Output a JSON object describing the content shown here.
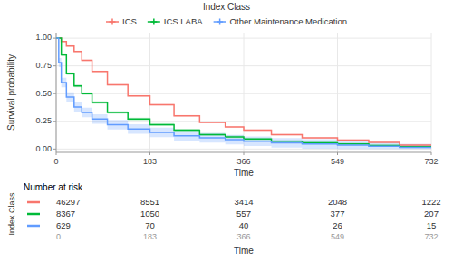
{
  "chart_data": {
    "type": "line",
    "xlabel": "Time",
    "ylabel": "Survival probability",
    "legend_title": "Index Class",
    "legend": "top",
    "grid": true,
    "xlim": [
      0,
      732
    ],
    "ylim": [
      -0.03,
      1.05
    ],
    "xticks": [
      0,
      183,
      366,
      549,
      732
    ],
    "yticks": [
      {
        "value": 0.0,
        "label": "0.00"
      },
      {
        "value": 0.25,
        "label": "0.25"
      },
      {
        "value": 0.5,
        "label": "0.50"
      },
      {
        "value": 0.75,
        "label": "0.75"
      },
      {
        "value": 1.0,
        "label": "1.00"
      }
    ],
    "risk_table": {
      "title": "Number at risk",
      "times": [
        0,
        183,
        366,
        549,
        732
      ]
    },
    "series": [
      {
        "name": "ICS",
        "color": "#f8766d",
        "x": [
          0,
          10,
          10,
          20,
          20,
          35,
          35,
          50,
          50,
          70,
          70,
          100,
          100,
          140,
          140,
          183,
          183,
          230,
          230,
          280,
          280,
          330,
          330,
          366,
          366,
          420,
          420,
          480,
          480,
          549,
          549,
          610,
          610,
          670,
          670,
          732
        ],
        "values": [
          1.0,
          1.0,
          0.97,
          0.97,
          0.93,
          0.93,
          0.88,
          0.88,
          0.8,
          0.8,
          0.7,
          0.7,
          0.58,
          0.58,
          0.48,
          0.48,
          0.4,
          0.4,
          0.3,
          0.3,
          0.24,
          0.24,
          0.2,
          0.2,
          0.17,
          0.17,
          0.13,
          0.13,
          0.1,
          0.1,
          0.08,
          0.08,
          0.06,
          0.06,
          0.035,
          0.035
        ],
        "ci_upper": [
          1.0,
          1.0,
          0.975,
          0.975,
          0.938,
          0.938,
          0.888,
          0.888,
          0.808,
          0.808,
          0.708,
          0.708,
          0.588,
          0.588,
          0.488,
          0.488,
          0.408,
          0.408,
          0.308,
          0.308,
          0.248,
          0.248,
          0.208,
          0.208,
          0.178,
          0.178,
          0.138,
          0.138,
          0.108,
          0.108,
          0.088,
          0.088,
          0.068,
          0.068,
          0.045,
          0.045
        ],
        "ci_lower": [
          1.0,
          1.0,
          0.965,
          0.965,
          0.922,
          0.922,
          0.872,
          0.872,
          0.792,
          0.792,
          0.692,
          0.692,
          0.572,
          0.572,
          0.472,
          0.472,
          0.392,
          0.392,
          0.292,
          0.292,
          0.232,
          0.232,
          0.192,
          0.192,
          0.162,
          0.162,
          0.122,
          0.122,
          0.092,
          0.092,
          0.072,
          0.072,
          0.052,
          0.052,
          0.025,
          0.025
        ],
        "at_risk": [
          46297,
          8551,
          3414,
          2048,
          1222
        ]
      },
      {
        "name": "ICS LABA",
        "color": "#00ba38",
        "x": [
          0,
          10,
          10,
          20,
          20,
          35,
          35,
          50,
          50,
          70,
          70,
          100,
          100,
          140,
          140,
          183,
          183,
          230,
          230,
          280,
          280,
          330,
          330,
          366,
          366,
          420,
          420,
          480,
          480,
          549,
          549,
          610,
          610,
          670,
          670,
          732
        ],
        "values": [
          1.0,
          1.0,
          0.85,
          0.85,
          0.68,
          0.68,
          0.57,
          0.57,
          0.5,
          0.5,
          0.42,
          0.42,
          0.33,
          0.33,
          0.27,
          0.27,
          0.22,
          0.22,
          0.17,
          0.17,
          0.13,
          0.13,
          0.11,
          0.11,
          0.09,
          0.09,
          0.07,
          0.07,
          0.055,
          0.055,
          0.045,
          0.045,
          0.032,
          0.032,
          0.022,
          0.022
        ],
        "ci_upper": [
          1.0,
          1.0,
          0.863,
          0.863,
          0.693,
          0.693,
          0.583,
          0.583,
          0.513,
          0.513,
          0.433,
          0.433,
          0.343,
          0.343,
          0.283,
          0.283,
          0.233,
          0.233,
          0.183,
          0.183,
          0.143,
          0.143,
          0.123,
          0.123,
          0.103,
          0.103,
          0.083,
          0.083,
          0.068,
          0.068,
          0.058,
          0.058,
          0.045,
          0.045,
          0.035,
          0.035
        ],
        "ci_lower": [
          1.0,
          1.0,
          0.837,
          0.837,
          0.667,
          0.667,
          0.557,
          0.557,
          0.487,
          0.487,
          0.407,
          0.407,
          0.317,
          0.317,
          0.257,
          0.257,
          0.207,
          0.207,
          0.157,
          0.157,
          0.117,
          0.117,
          0.097,
          0.097,
          0.077,
          0.077,
          0.057,
          0.057,
          0.042,
          0.042,
          0.032,
          0.032,
          0.019,
          0.019,
          0.009,
          0.009
        ],
        "at_risk": [
          8367,
          1050,
          557,
          377,
          207
        ]
      },
      {
        "name": "Other Maintenance Medication",
        "color": "#619cff",
        "x": [
          0,
          5,
          5,
          10,
          10,
          20,
          20,
          35,
          35,
          50,
          50,
          70,
          70,
          100,
          100,
          140,
          140,
          183,
          183,
          230,
          230,
          280,
          280,
          330,
          330,
          366,
          366,
          420,
          420,
          480,
          480,
          549,
          549,
          610,
          610,
          670,
          670,
          732
        ],
        "values": [
          1.0,
          1.0,
          0.78,
          0.78,
          0.6,
          0.6,
          0.47,
          0.47,
          0.38,
          0.38,
          0.33,
          0.33,
          0.27,
          0.27,
          0.22,
          0.22,
          0.18,
          0.18,
          0.15,
          0.15,
          0.12,
          0.12,
          0.1,
          0.1,
          0.085,
          0.085,
          0.07,
          0.07,
          0.055,
          0.055,
          0.045,
          0.045,
          0.035,
          0.035,
          0.025,
          0.025,
          0.015,
          0.015
        ],
        "ci_upper": [
          1.0,
          1.0,
          0.82,
          0.82,
          0.643,
          0.643,
          0.513,
          0.513,
          0.423,
          0.423,
          0.373,
          0.373,
          0.313,
          0.313,
          0.263,
          0.263,
          0.223,
          0.223,
          0.193,
          0.193,
          0.163,
          0.163,
          0.143,
          0.143,
          0.128,
          0.128,
          0.113,
          0.113,
          0.098,
          0.098,
          0.088,
          0.088,
          0.075,
          0.075,
          0.06,
          0.06,
          0.045,
          0.045
        ],
        "ci_lower": [
          1.0,
          1.0,
          0.74,
          0.74,
          0.557,
          0.557,
          0.427,
          0.427,
          0.337,
          0.337,
          0.287,
          0.287,
          0.227,
          0.227,
          0.177,
          0.177,
          0.137,
          0.137,
          0.107,
          0.107,
          0.077,
          0.077,
          0.057,
          0.057,
          0.042,
          0.042,
          0.027,
          0.027,
          0.012,
          0.012,
          0.002,
          0.002,
          0.0,
          0.0,
          0.0,
          0.0,
          0.0,
          0.0
        ],
        "at_risk": [
          629,
          70,
          40,
          26,
          15
        ]
      }
    ]
  }
}
